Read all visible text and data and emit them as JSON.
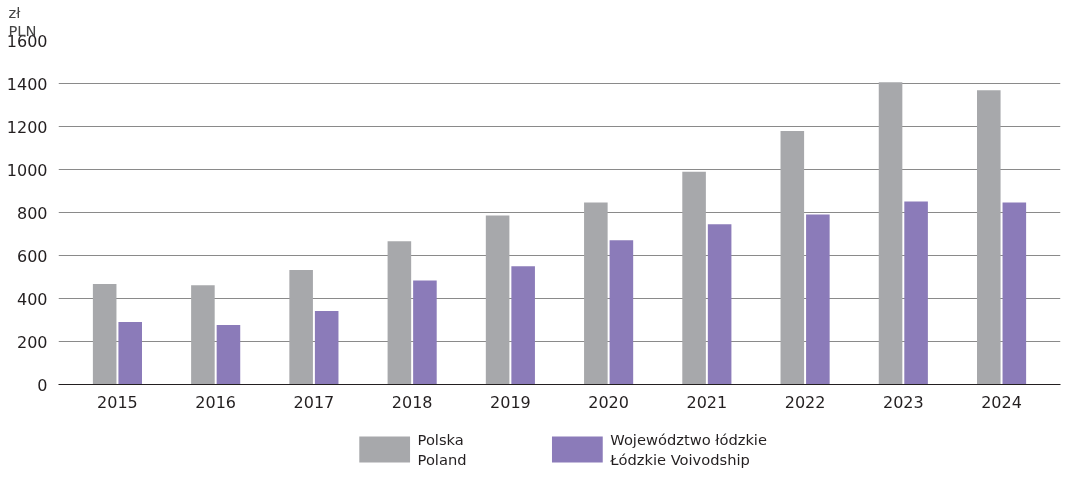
{
  "chart_data": {
    "type": "bar",
    "ylabel": "zł\nPLN",
    "categories": [
      "2015",
      "2016",
      "2017",
      "2018",
      "2019",
      "2020",
      "2021",
      "2022",
      "2023",
      "2024"
    ],
    "series": [
      {
        "name": "Polska\nPoland",
        "color": "#a7a8ab",
        "values": [
          467,
          462,
          532,
          666,
          786,
          846,
          990,
          1179,
          1406,
          1369
        ]
      },
      {
        "name": "Województwo łódzkie\nŁódzkie Voivodship",
        "color": "#8b7bb9",
        "values": [
          291,
          277,
          342,
          484,
          550,
          671,
          745,
          791,
          851,
          846
        ]
      }
    ],
    "ylim": [
      0,
      1600
    ],
    "yticks": [
      0,
      200,
      400,
      600,
      800,
      1000,
      1200,
      1400,
      1600
    ],
    "grid": "y",
    "legend": "bottom"
  }
}
